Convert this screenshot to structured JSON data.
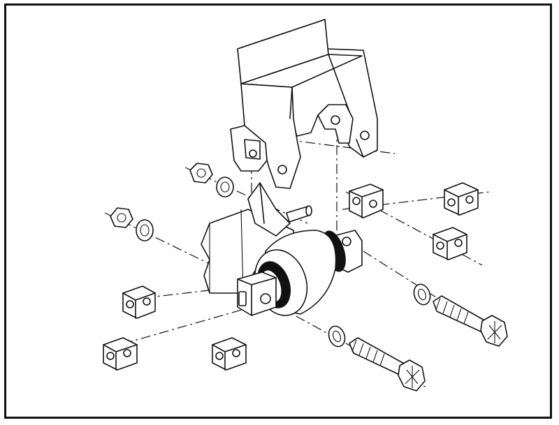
{
  "figure": {
    "type": "exploded-view line drawing",
    "colors": {
      "ink": "#111111",
      "paper": "#ffffff"
    },
    "parts": [
      "hanger-bracket",
      "bushing-assembly",
      "mounting-shaft",
      "frame-rail",
      "hex-nut",
      "flat-washer",
      "hex-bolt",
      "alignment-shim"
    ]
  }
}
